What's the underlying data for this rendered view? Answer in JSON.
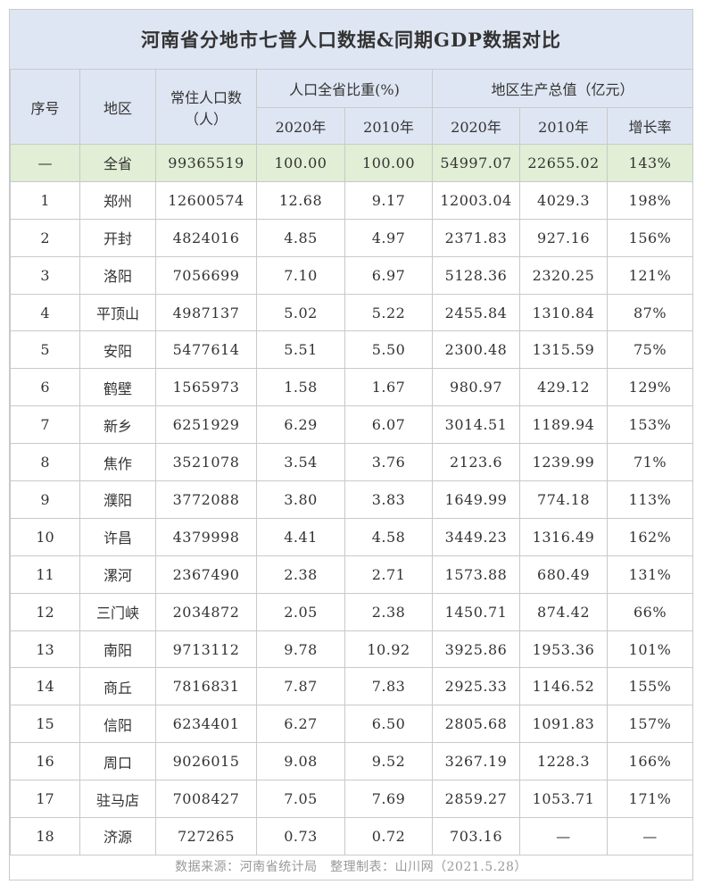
{
  "title": "河南省分地市七普人口数据&同期GDP数据对比",
  "headers": {
    "seq": "序号",
    "region": "地区",
    "population": "常住人口数\n（人）",
    "share_group": "人口全省比重(%)",
    "gdp_group": "地区生产总值（亿元）",
    "y2020": "2020年",
    "y2010": "2010年",
    "gdp2020": "2020年",
    "gdp2010": "2010年",
    "growth": "增长率"
  },
  "total": {
    "seq": "—",
    "region": "全省",
    "population": "99365519",
    "share2020": "100.00",
    "share2010": "100.00",
    "gdp2020": "54997.07",
    "gdp2010": "22655.02",
    "growth": "143%"
  },
  "rows": [
    {
      "seq": "1",
      "region": "郑州",
      "population": "12600574",
      "share2020": "12.68",
      "share2010": "9.17",
      "gdp2020": "12003.04",
      "gdp2010": "4029.3",
      "growth": "198%"
    },
    {
      "seq": "2",
      "region": "开封",
      "population": "4824016",
      "share2020": "4.85",
      "share2010": "4.97",
      "gdp2020": "2371.83",
      "gdp2010": "927.16",
      "growth": "156%"
    },
    {
      "seq": "3",
      "region": "洛阳",
      "population": "7056699",
      "share2020": "7.10",
      "share2010": "6.97",
      "gdp2020": "5128.36",
      "gdp2010": "2320.25",
      "growth": "121%"
    },
    {
      "seq": "4",
      "region": "平顶山",
      "population": "4987137",
      "share2020": "5.02",
      "share2010": "5.22",
      "gdp2020": "2455.84",
      "gdp2010": "1310.84",
      "growth": "87%"
    },
    {
      "seq": "5",
      "region": "安阳",
      "population": "5477614",
      "share2020": "5.51",
      "share2010": "5.50",
      "gdp2020": "2300.48",
      "gdp2010": "1315.59",
      "growth": "75%"
    },
    {
      "seq": "6",
      "region": "鹤壁",
      "population": "1565973",
      "share2020": "1.58",
      "share2010": "1.67",
      "gdp2020": "980.97",
      "gdp2010": "429.12",
      "growth": "129%"
    },
    {
      "seq": "7",
      "region": "新乡",
      "population": "6251929",
      "share2020": "6.29",
      "share2010": "6.07",
      "gdp2020": "3014.51",
      "gdp2010": "1189.94",
      "growth": "153%"
    },
    {
      "seq": "8",
      "region": "焦作",
      "population": "3521078",
      "share2020": "3.54",
      "share2010": "3.76",
      "gdp2020": "2123.6",
      "gdp2010": "1239.99",
      "growth": "71%"
    },
    {
      "seq": "9",
      "region": "濮阳",
      "population": "3772088",
      "share2020": "3.80",
      "share2010": "3.83",
      "gdp2020": "1649.99",
      "gdp2010": "774.18",
      "growth": "113%"
    },
    {
      "seq": "10",
      "region": "许昌",
      "population": "4379998",
      "share2020": "4.41",
      "share2010": "4.58",
      "gdp2020": "3449.23",
      "gdp2010": "1316.49",
      "growth": "162%"
    },
    {
      "seq": "11",
      "region": "漯河",
      "population": "2367490",
      "share2020": "2.38",
      "share2010": "2.71",
      "gdp2020": "1573.88",
      "gdp2010": "680.49",
      "growth": "131%"
    },
    {
      "seq": "12",
      "region": "三门峡",
      "population": "2034872",
      "share2020": "2.05",
      "share2010": "2.38",
      "gdp2020": "1450.71",
      "gdp2010": "874.42",
      "growth": "66%"
    },
    {
      "seq": "13",
      "region": "南阳",
      "population": "9713112",
      "share2020": "9.78",
      "share2010": "10.92",
      "gdp2020": "3925.86",
      "gdp2010": "1953.36",
      "growth": "101%"
    },
    {
      "seq": "14",
      "region": "商丘",
      "population": "7816831",
      "share2020": "7.87",
      "share2010": "7.83",
      "gdp2020": "2925.33",
      "gdp2010": "1146.52",
      "growth": "155%"
    },
    {
      "seq": "15",
      "region": "信阳",
      "population": "6234401",
      "share2020": "6.27",
      "share2010": "6.50",
      "gdp2020": "2805.68",
      "gdp2010": "1091.83",
      "growth": "157%"
    },
    {
      "seq": "16",
      "region": "周口",
      "population": "9026015",
      "share2020": "9.08",
      "share2010": "9.52",
      "gdp2020": "3267.19",
      "gdp2010": "1228.3",
      "growth": "166%"
    },
    {
      "seq": "17",
      "region": "驻马店",
      "population": "7008427",
      "share2020": "7.05",
      "share2010": "7.69",
      "gdp2020": "2859.27",
      "gdp2010": "1053.71",
      "growth": "171%"
    },
    {
      "seq": "18",
      "region": "济源",
      "population": "727265",
      "share2020": "0.73",
      "share2010": "0.72",
      "gdp2020": "703.16",
      "gdp2010": "—",
      "growth": "—"
    }
  ],
  "source": "数据来源：河南省统计局　整理制表：山川网（2021.5.28）",
  "colors": {
    "header_bg": "#dfe6f3",
    "total_row_bg": "#e2eed5",
    "border": "#c9c9c9"
  }
}
